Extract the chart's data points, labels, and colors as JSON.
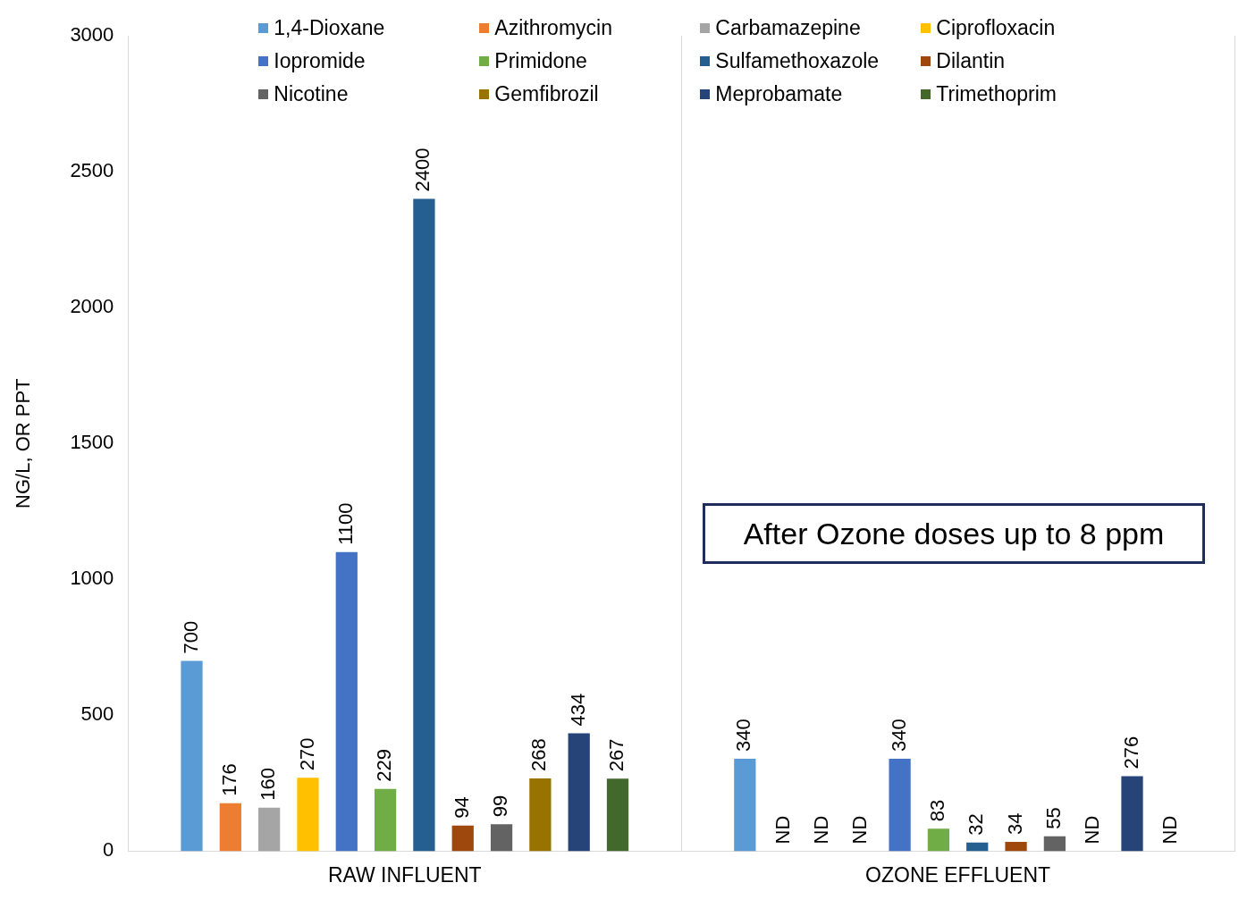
{
  "chart_data": {
    "type": "bar",
    "ylabel": "NG/L, OR PPT",
    "categories": [
      "RAW INFLUENT",
      "OZONE EFFLUENT"
    ],
    "series": [
      {
        "name": "1,4-Dioxane",
        "color": "#5b9bd5",
        "values": [
          700,
          340
        ],
        "value_labels": [
          "700",
          "340"
        ]
      },
      {
        "name": "Azithromycin",
        "color": "#ed7d31",
        "values": [
          176,
          null
        ],
        "value_labels": [
          "176",
          "ND"
        ]
      },
      {
        "name": "Carbamazepine",
        "color": "#a5a5a5",
        "values": [
          160,
          null
        ],
        "value_labels": [
          "160",
          "ND"
        ]
      },
      {
        "name": "Ciprofloxacin",
        "color": "#ffc000",
        "values": [
          270,
          null
        ],
        "value_labels": [
          "270",
          "ND"
        ]
      },
      {
        "name": "Iopromide",
        "color": "#4472c4",
        "values": [
          1100,
          340
        ],
        "value_labels": [
          "1100",
          "340"
        ]
      },
      {
        "name": "Primidone",
        "color": "#70ad47",
        "values": [
          229,
          83
        ],
        "value_labels": [
          "229",
          "83"
        ]
      },
      {
        "name": "Sulfamethoxazole",
        "color": "#255e91",
        "values": [
          2400,
          32
        ],
        "value_labels": [
          "2400",
          "32"
        ]
      },
      {
        "name": "Dilantin",
        "color": "#9e480e",
        "values": [
          94,
          34
        ],
        "value_labels": [
          "94",
          "34"
        ]
      },
      {
        "name": "Nicotine",
        "color": "#636363",
        "values": [
          99,
          55
        ],
        "value_labels": [
          "99",
          "55"
        ]
      },
      {
        "name": "Gemfibrozil",
        "color": "#997300",
        "values": [
          268,
          null
        ],
        "value_labels": [
          "268",
          "ND"
        ]
      },
      {
        "name": "Meprobamate",
        "color": "#264478",
        "values": [
          434,
          276
        ],
        "value_labels": [
          "434",
          "276"
        ]
      },
      {
        "name": "Trimethoprim",
        "color": "#43682b",
        "values": [
          267,
          null
        ],
        "value_labels": [
          "267",
          "ND"
        ]
      }
    ],
    "ylim": [
      0,
      3000
    ],
    "yticks": [
      0,
      500,
      1000,
      1500,
      2000,
      2500,
      3000
    ],
    "grid": "x",
    "legend": "top",
    "annotations": [
      "After Ozone doses up to 8 ppm"
    ]
  }
}
